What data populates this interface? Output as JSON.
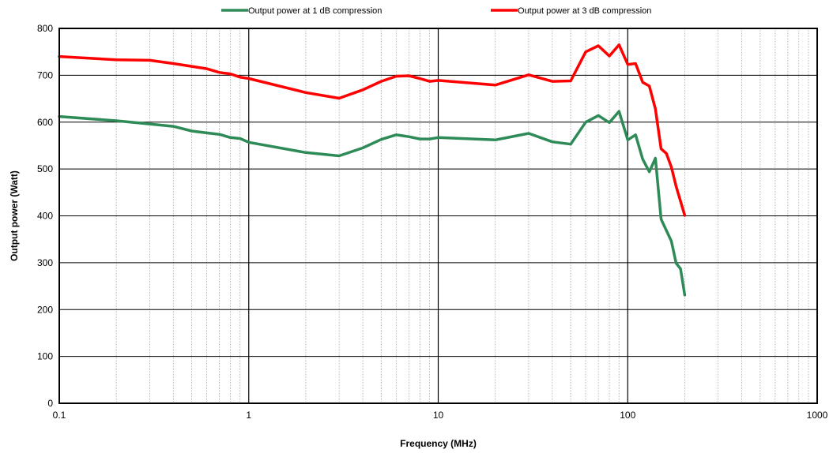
{
  "chart_data": {
    "type": "line",
    "xlabel": "Frequency  (MHz)",
    "ylabel": "Output power (Watt)",
    "x_scale": "log",
    "xlim": [
      0.1,
      1000
    ],
    "ylim": [
      0,
      800
    ],
    "x_ticks": [
      "0.1",
      "1",
      "10",
      "100",
      "1000"
    ],
    "y_ticks": [
      "0",
      "100",
      "200",
      "300",
      "400",
      "500",
      "600",
      "700",
      "800"
    ],
    "grid": true,
    "legend_position": "top",
    "series": [
      {
        "name": "Output power at 1 dB compression",
        "color": "#2e8b57",
        "x": [
          0.1,
          0.2,
          0.3,
          0.4,
          0.5,
          0.6,
          0.7,
          0.8,
          0.9,
          1,
          2,
          3,
          4,
          5,
          6,
          7,
          8,
          9,
          10,
          20,
          30,
          40,
          50,
          60,
          70,
          80,
          90,
          100,
          110,
          120,
          130,
          140,
          150,
          170,
          180,
          190,
          200
        ],
        "values": [
          612,
          603,
          596,
          591,
          581,
          577,
          574,
          567,
          565,
          557,
          535,
          528,
          545,
          563,
          573,
          569,
          564,
          564,
          567,
          562,
          576,
          558,
          553,
          600,
          614,
          599,
          623,
          562,
          573,
          521,
          494,
          523,
          393,
          346,
          299,
          287,
          231
        ]
      },
      {
        "name": "Output power at 3 dB compression",
        "color": "#ff0000",
        "x": [
          0.1,
          0.2,
          0.3,
          0.4,
          0.5,
          0.6,
          0.7,
          0.8,
          0.9,
          1,
          2,
          3,
          4,
          5,
          6,
          7,
          8,
          9,
          10,
          20,
          30,
          40,
          50,
          60,
          70,
          80,
          90,
          100,
          110,
          120,
          130,
          140,
          150,
          160,
          170,
          180,
          200
        ],
        "values": [
          740,
          733,
          732,
          725,
          719,
          714,
          706,
          703,
          696,
          693,
          663,
          651,
          669,
          687,
          698,
          699,
          693,
          687,
          689,
          679,
          701,
          687,
          688,
          750,
          763,
          741,
          765,
          723,
          725,
          685,
          677,
          628,
          543,
          533,
          504,
          463,
          401
        ]
      }
    ]
  }
}
